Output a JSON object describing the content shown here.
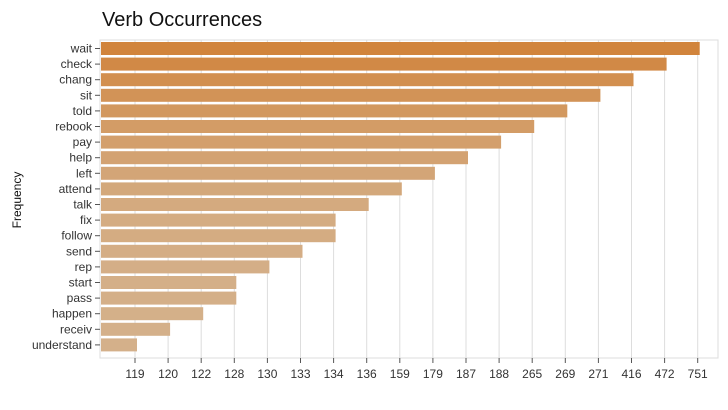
{
  "chart_data": {
    "type": "bar",
    "orientation": "horizontal",
    "title": "Verb Occurrences",
    "xlabel": "",
    "ylabel": "Frequency",
    "categories": [
      "wait",
      "check",
      "chang",
      "sit",
      "told",
      "rebook",
      "pay",
      "help",
      "left",
      "attend",
      "talk",
      "fix",
      "follow",
      "send",
      "rep",
      "start",
      "pass",
      "happen",
      "receiv",
      "understand"
    ],
    "values": [
      751,
      472,
      416,
      271,
      269,
      265,
      188,
      187,
      179,
      159,
      136,
      134,
      134,
      133,
      130,
      128,
      128,
      122,
      120,
      119
    ],
    "x_tick_labels": [
      "119",
      "120",
      "122",
      "128",
      "130",
      "133",
      "134",
      "136",
      "159",
      "179",
      "187",
      "188",
      "265",
      "269",
      "271",
      "416",
      "472",
      "751"
    ],
    "grid": true,
    "legend": "none",
    "colors": {
      "low": "#d4b08a",
      "high": "#d1843c",
      "grid": "#dddddd"
    }
  }
}
